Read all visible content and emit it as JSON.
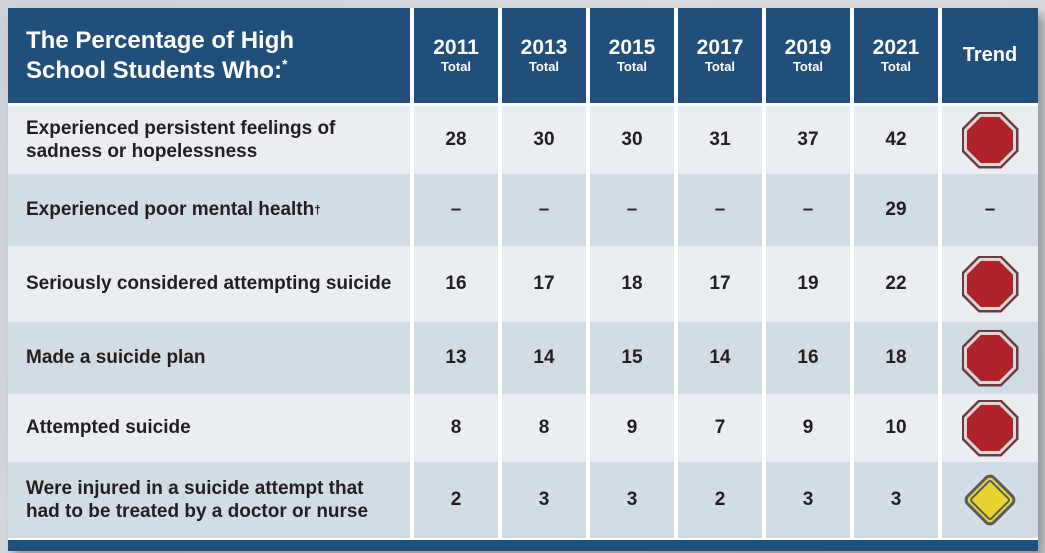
{
  "table": {
    "title": "The Percentage of High School Students Who:",
    "title_sup": "*",
    "trend_label": "Trend",
    "columns": [
      {
        "year": "2011",
        "sub": "Total"
      },
      {
        "year": "2013",
        "sub": "Total"
      },
      {
        "year": "2015",
        "sub": "Total"
      },
      {
        "year": "2017",
        "sub": "Total"
      },
      {
        "year": "2019",
        "sub": "Total"
      },
      {
        "year": "2021",
        "sub": "Total"
      }
    ],
    "rows": [
      {
        "label": "Experienced persistent feelings of sadness or hopelessness",
        "sup": "",
        "values": [
          "28",
          "30",
          "30",
          "31",
          "37",
          "42"
        ],
        "trend_icon": "stop-sign-icon"
      },
      {
        "label": "Experienced poor mental health",
        "sup": "†",
        "values": [
          "–",
          "–",
          "–",
          "–",
          "–",
          "29"
        ],
        "trend_icon": "dash",
        "trend_dash": "–"
      },
      {
        "label": "Seriously considered attempting suicide",
        "sup": "",
        "values": [
          "16",
          "17",
          "18",
          "17",
          "19",
          "22"
        ],
        "trend_icon": "stop-sign-icon"
      },
      {
        "label": "Made a suicide plan",
        "sup": "",
        "values": [
          "13",
          "14",
          "15",
          "14",
          "16",
          "18"
        ],
        "trend_icon": "stop-sign-icon"
      },
      {
        "label": "Attempted suicide",
        "sup": "",
        "values": [
          "8",
          "8",
          "9",
          "7",
          "9",
          "10"
        ],
        "trend_icon": "stop-sign-icon"
      },
      {
        "label": "Were injured in a suicide attempt that had to be treated by a doctor or nurse",
        "sup": "",
        "values": [
          "2",
          "3",
          "3",
          "2",
          "3",
          "3"
        ],
        "trend_icon": "caution-diamond-icon"
      }
    ],
    "colors": {
      "header_blue": "#1f4f7a",
      "row_light": "#eaedf2",
      "row_blue": "#d1dce4",
      "stop_red": "#b02328",
      "stop_maroon_ring": "#6d3c40",
      "stop_light_ring": "#d9d9d9",
      "caution_yellow": "#e8d431",
      "caution_gray": "#5a5b5d",
      "bottom_bar_blue": "#1f4f7a"
    }
  },
  "chart_data": {
    "type": "table",
    "title": "The Percentage of High School Students Who:*",
    "columns": [
      "2011 Total",
      "2013 Total",
      "2015 Total",
      "2017 Total",
      "2019 Total",
      "2021 Total",
      "Trend"
    ],
    "rows": [
      {
        "label": "Experienced persistent feelings of sadness or hopelessness",
        "values": [
          28,
          30,
          30,
          31,
          37,
          42
        ],
        "trend": "stop-sign (worsening)"
      },
      {
        "label": "Experienced poor mental health†",
        "values": [
          null,
          null,
          null,
          null,
          null,
          29
        ],
        "trend": "–"
      },
      {
        "label": "Seriously considered attempting suicide",
        "values": [
          16,
          17,
          18,
          17,
          19,
          22
        ],
        "trend": "stop-sign (worsening)"
      },
      {
        "label": "Made a suicide plan",
        "values": [
          13,
          14,
          15,
          14,
          16,
          18
        ],
        "trend": "stop-sign (worsening)"
      },
      {
        "label": "Attempted suicide",
        "values": [
          8,
          8,
          9,
          7,
          9,
          10
        ],
        "trend": "stop-sign (worsening)"
      },
      {
        "label": "Were injured in a suicide attempt that had to be treated by a doctor or nurse",
        "values": [
          2,
          3,
          3,
          2,
          3,
          3
        ],
        "trend": "caution-diamond"
      }
    ]
  }
}
